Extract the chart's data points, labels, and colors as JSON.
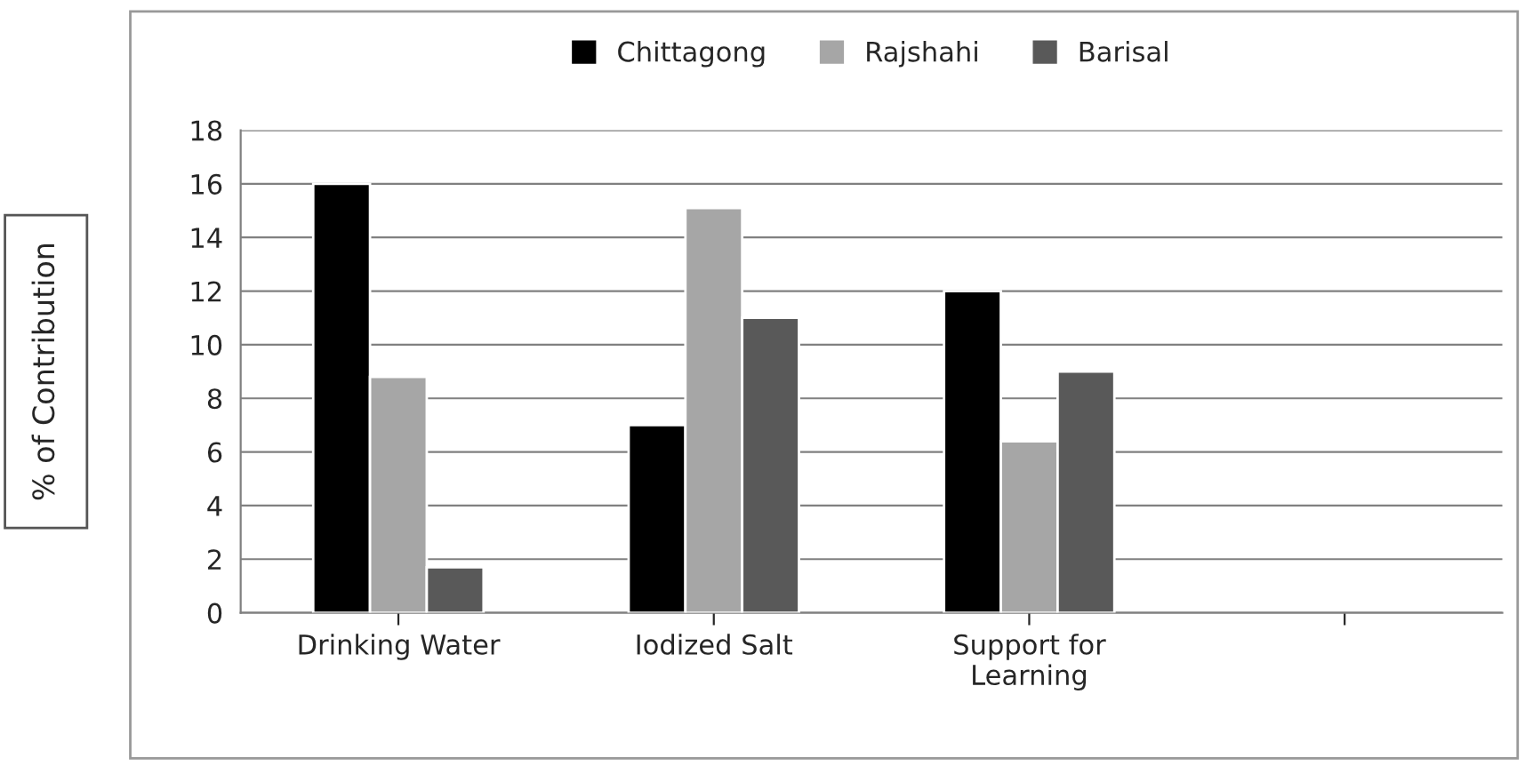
{
  "chart_data": {
    "type": "bar",
    "ylabel": "% of Contribution",
    "categories": [
      "Drinking Water",
      "Iodized Salt",
      "Support for\nLearning",
      null
    ],
    "series": [
      {
        "name": "Chittagong",
        "color": "#000000",
        "values": [
          16,
          7,
          12,
          null
        ]
      },
      {
        "name": "Rajshahi",
        "color": "#a6a6a6",
        "values": [
          8.8,
          15.1,
          6.4,
          null
        ]
      },
      {
        "name": "Barisal",
        "color": "#595959",
        "values": [
          1.7,
          11,
          9,
          null
        ]
      }
    ],
    "ylim": [
      0,
      18
    ],
    "yticks": [
      0,
      2,
      4,
      6,
      8,
      10,
      12,
      14,
      16,
      18
    ],
    "grid": "y",
    "legend": "top"
  }
}
